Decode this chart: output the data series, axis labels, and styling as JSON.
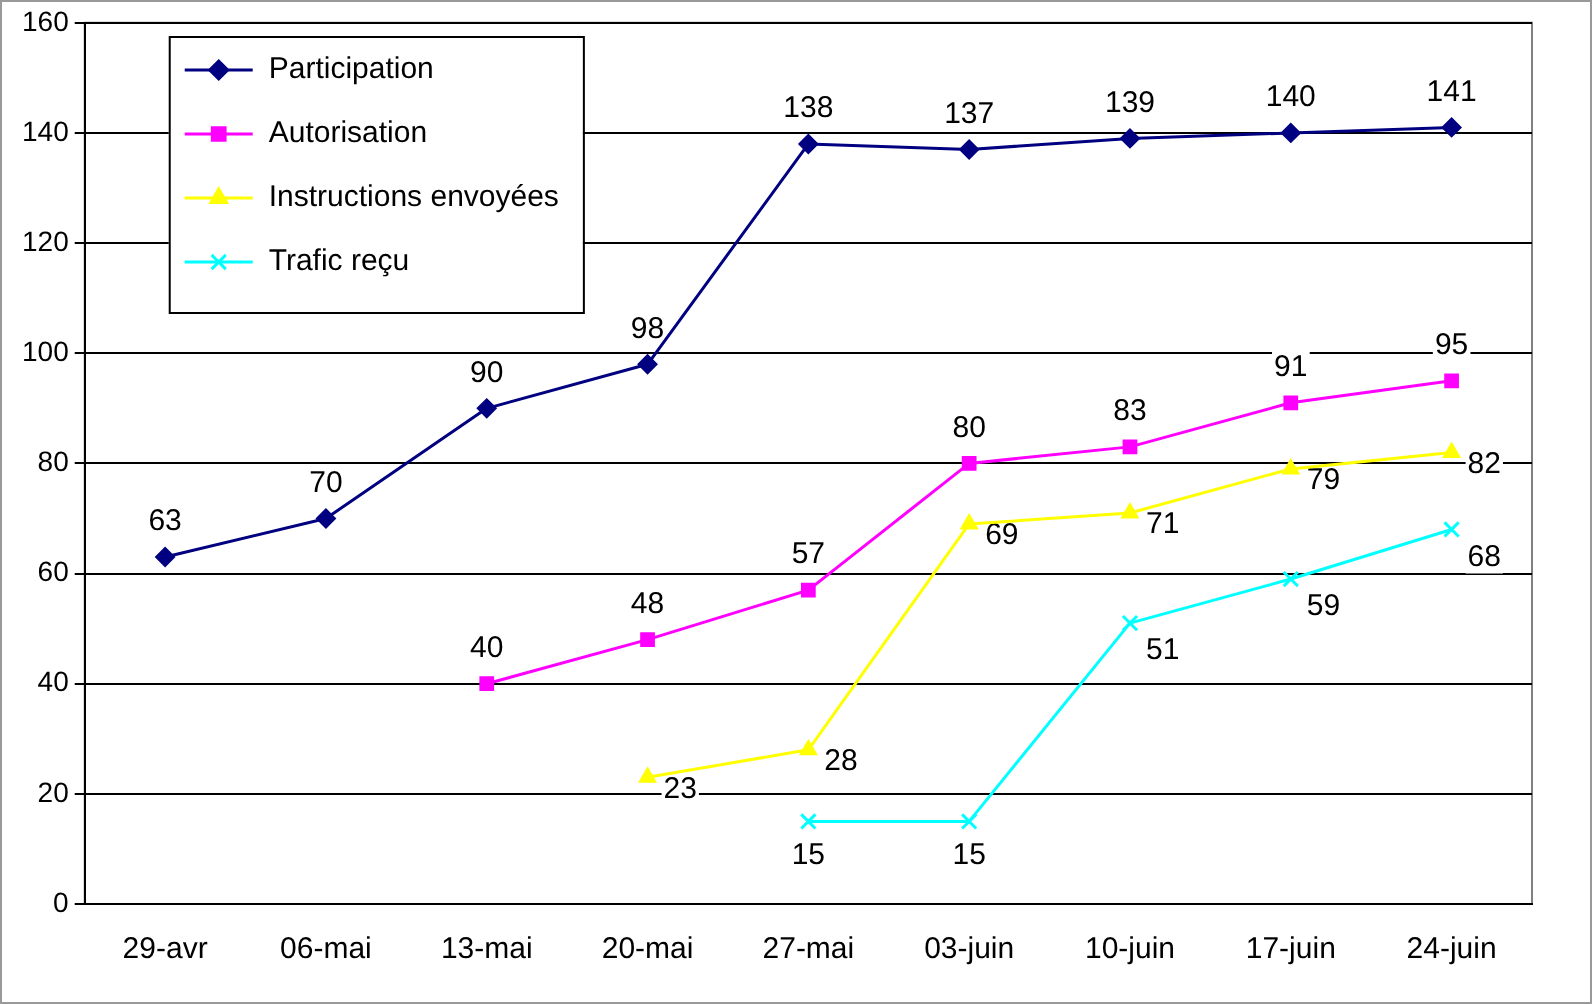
{
  "chart_data": {
    "type": "line",
    "categories": [
      "29-avr",
      "06-mai",
      "13-mai",
      "20-mai",
      "27-mai",
      "03-juin",
      "10-juin",
      "17-juin",
      "24-juin"
    ],
    "series": [
      {
        "name": "Participation",
        "color": "#000080",
        "marker": "diamond",
        "values": [
          63,
          70,
          90,
          98,
          138,
          137,
          139,
          140,
          141
        ]
      },
      {
        "name": "Autorisation",
        "color": "#ff00ff",
        "marker": "square",
        "values": [
          null,
          null,
          40,
          48,
          57,
          80,
          83,
          91,
          95
        ]
      },
      {
        "name": "Instructions envoyées",
        "color": "#ffff00",
        "marker": "triangle",
        "values": [
          null,
          null,
          null,
          23,
          28,
          69,
          71,
          79,
          82
        ]
      },
      {
        "name": "Trafic reçu",
        "color": "#00ffff",
        "marker": "cross",
        "values": [
          null,
          null,
          null,
          null,
          15,
          15,
          51,
          59,
          68
        ]
      }
    ],
    "ylim": [
      0,
      160
    ],
    "yticks": [
      0,
      20,
      40,
      60,
      80,
      100,
      120,
      140,
      160
    ],
    "grid": "y",
    "legend": "top left",
    "data_labels": true,
    "line_style": "solid"
  }
}
